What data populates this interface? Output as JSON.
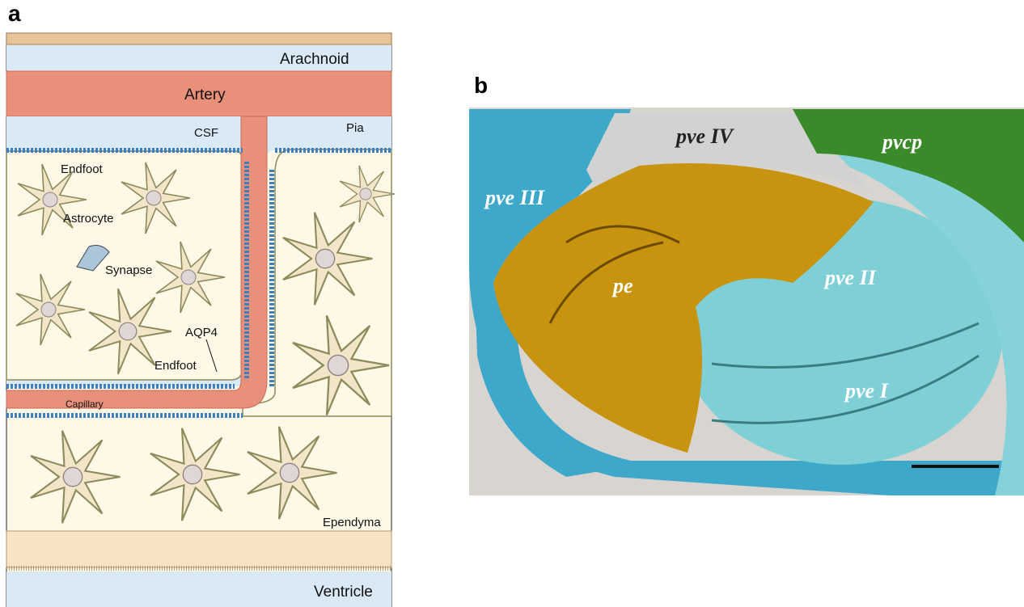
{
  "panels": [
    {
      "label": "a",
      "labels": [
        "Arachnoid",
        "Artery",
        "CSF",
        "Pia",
        "Endfoot",
        "Astrocyte",
        "Synapse",
        "AQP4",
        "Endfoot",
        "Capillary",
        "Ependyma",
        "Ventricle"
      ]
    },
    {
      "label": "b",
      "labels": [
        "pve IV",
        "pvcp",
        "pve III",
        "pe",
        "pve II",
        "pve I"
      ]
    }
  ]
}
